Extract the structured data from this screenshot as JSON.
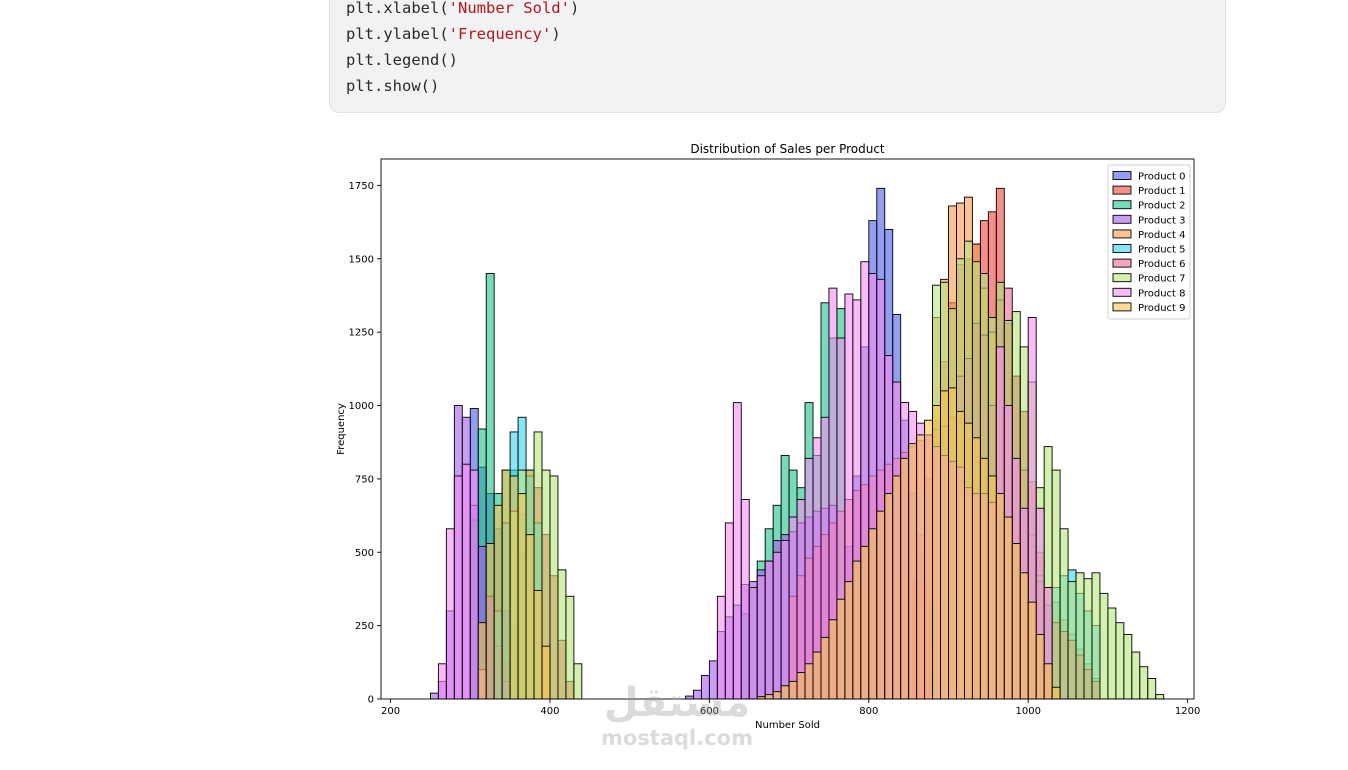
{
  "code": {
    "lines": [
      {
        "prefix": "plt.xlabel(",
        "arg": "'Number Sold'",
        "suffix": ")"
      },
      {
        "prefix": "plt.ylabel(",
        "arg": "'Frequency'",
        "suffix": ")"
      },
      {
        "prefix": "plt.legend()",
        "arg": "",
        "suffix": ""
      },
      {
        "prefix": "plt.show()",
        "arg": "",
        "suffix": ""
      }
    ]
  },
  "watermark": {
    "logo": "مستقل",
    "text": "mostaql.com"
  },
  "chart_data": {
    "type": "bar",
    "title": "Distribution of Sales per Product",
    "xlabel": "Number Sold",
    "ylabel": "Frequency",
    "xlim": [
      188,
      1208
    ],
    "ylim": [
      0,
      1840
    ],
    "xticks": [
      200,
      400,
      600,
      800,
      1000,
      1200
    ],
    "yticks": [
      0,
      250,
      500,
      750,
      1000,
      1250,
      1500,
      1750
    ],
    "legend_position": "top-right",
    "grid": false,
    "series": [
      {
        "name": "Product 0",
        "color": "#4b5ce8",
        "bin_width": 10,
        "x": [
          300,
          310,
          320,
          330,
          340,
          770,
          780,
          790,
          800,
          810,
          820,
          830,
          840,
          850,
          860,
          870,
          880,
          890,
          900
        ],
        "values": [
          990,
          790,
          700,
          580,
          300,
          520,
          760,
          1200,
          1630,
          1740,
          1600,
          1310,
          950,
          700,
          500,
          320,
          180,
          80,
          30
        ]
      },
      {
        "name": "Product 1",
        "color": "#f0443a",
        "bin_width": 10,
        "x": [
          340,
          350,
          360,
          370,
          380,
          390,
          400,
          410,
          420,
          850,
          860,
          870,
          880,
          890,
          900,
          910,
          920,
          930,
          940,
          950,
          960,
          970,
          980,
          990,
          1000,
          1010,
          1020
        ],
        "values": [
          120,
          250,
          500,
          780,
          720,
          560,
          420,
          200,
          60,
          400,
          560,
          750,
          950,
          1150,
          1350,
          1480,
          1500,
          1550,
          1630,
          1660,
          1740,
          1280,
          1100,
          980,
          740,
          500,
          200
        ]
      },
      {
        "name": "Product 2",
        "color": "#1cc28a",
        "bin_width": 10,
        "x": [
          300,
          310,
          320,
          330,
          340,
          350,
          360,
          640,
          650,
          660,
          670,
          680,
          690,
          700,
          710,
          720,
          730,
          740,
          750,
          760
        ],
        "values": [
          610,
          920,
          1450,
          700,
          780,
          780,
          630,
          290,
          380,
          470,
          580,
          660,
          830,
          780,
          720,
          1010,
          830,
          1350,
          1230,
          1330
        ]
      },
      {
        "name": "Product 3",
        "color": "#a35cf0",
        "bin_width": 10,
        "x": [
          250,
          260,
          270,
          280,
          290,
          300,
          310,
          320,
          330,
          340,
          570,
          580,
          590,
          600,
          610,
          620,
          630,
          640,
          650,
          660,
          670,
          680,
          690,
          700,
          710,
          720,
          730,
          740,
          750
        ],
        "values": [
          20,
          60,
          300,
          1000,
          960,
          660,
          520,
          350,
          180,
          60,
          10,
          30,
          80,
          130,
          230,
          280,
          320,
          390,
          400,
          440,
          470,
          540,
          560,
          570,
          600,
          620,
          640,
          650,
          660
        ]
      },
      {
        "name": "Product 4",
        "color": "#f89a4c",
        "bin_width": 10,
        "x": [
          880,
          890,
          900,
          910,
          920,
          930,
          940,
          950,
          960,
          970,
          980,
          990,
          1000,
          1010,
          1020,
          1030,
          1040,
          1050,
          1060,
          1070,
          1080
        ],
        "values": [
          1300,
          1430,
          1680,
          1690,
          1710,
          1550,
          1400,
          1250,
          1150,
          980,
          820,
          640,
          520,
          420,
          380,
          330,
          270,
          220,
          170,
          120,
          70
        ]
      },
      {
        "name": "Product 5",
        "color": "#36d6f0",
        "bin_width": 10,
        "x": [
          330,
          340,
          350,
          360,
          370,
          380,
          1020,
          1030,
          1040,
          1050,
          1060,
          1070,
          1080
        ],
        "values": [
          300,
          600,
          910,
          960,
          760,
          600,
          320,
          380,
          420,
          440,
          360,
          300,
          250
        ]
      },
      {
        "name": "Product 6",
        "color": "#ee6a8c",
        "bin_width": 10,
        "x": [
          700,
          710,
          720,
          730,
          740,
          750,
          760,
          770,
          780,
          790,
          800,
          810,
          820,
          830,
          840,
          850,
          860,
          870,
          880,
          890,
          900,
          910,
          920,
          930,
          940,
          950,
          960,
          970,
          980,
          990,
          1000,
          1010,
          1020,
          1030,
          1040,
          1050,
          1060,
          1070,
          1080
        ],
        "values": [
          350,
          420,
          480,
          520,
          560,
          600,
          640,
          680,
          710,
          730,
          760,
          780,
          800,
          820,
          840,
          860,
          880,
          900,
          920,
          930,
          960,
          1100,
          1160,
          1280,
          1240,
          1000,
          1360,
          1400,
          1100,
          780,
          560,
          400,
          320,
          260,
          230,
          200,
          150,
          100,
          60
        ]
      },
      {
        "name": "Product 7",
        "color": "#b5e67a",
        "bin_width": 10,
        "x": [
          350,
          360,
          370,
          380,
          390,
          400,
          410,
          420,
          430,
          880,
          890,
          900,
          910,
          920,
          930,
          940,
          950,
          960,
          970,
          980,
          990,
          1000,
          1010,
          1020,
          1030,
          1040,
          1050,
          1060,
          1070,
          1080,
          1090,
          1100,
          1110,
          1120,
          1130,
          1140,
          1150,
          1160
        ],
        "values": [
          640,
          780,
          780,
          910,
          780,
          760,
          440,
          350,
          120,
          1410,
          1420,
          1330,
          1500,
          1560,
          1490,
          1450,
          1300,
          1420,
          1290,
          1320,
          1200,
          1080,
          720,
          860,
          780,
          580,
          400,
          430,
          410,
          430,
          360,
          310,
          260,
          220,
          160,
          110,
          70,
          15
        ]
      },
      {
        "name": "Product 8",
        "color": "#f58cf5",
        "bin_width": 10,
        "x": [
          260,
          270,
          280,
          290,
          300,
          310,
          610,
          620,
          630,
          640,
          650,
          660,
          670,
          680,
          690,
          700,
          710,
          720,
          730,
          740,
          750,
          760,
          770,
          780,
          790,
          800,
          810,
          820,
          830,
          840,
          850,
          860,
          870,
          880,
          890,
          900,
          910,
          920,
          930,
          940,
          950,
          960,
          970,
          980,
          990,
          1000,
          1010,
          1020
        ],
        "values": [
          120,
          580,
          760,
          800,
          780,
          100,
          350,
          600,
          1010,
          680,
          380,
          420,
          470,
          500,
          540,
          620,
          680,
          820,
          890,
          960,
          1400,
          1230,
          1380,
          1360,
          1490,
          1450,
          1430,
          1170,
          1080,
          1010,
          980,
          940,
          900,
          860,
          830,
          810,
          790,
          720,
          700,
          700,
          670,
          1200,
          1000,
          820,
          650,
          1300,
          650,
          380
        ]
      },
      {
        "name": "Product 9",
        "color": "#f7c451",
        "bin_width": 10,
        "x": [
          310,
          320,
          330,
          340,
          350,
          360,
          370,
          380,
          390,
          660,
          670,
          680,
          690,
          700,
          710,
          720,
          730,
          740,
          750,
          760,
          770,
          780,
          790,
          800,
          810,
          820,
          830,
          840,
          850,
          860,
          870,
          880,
          890,
          900,
          910,
          920,
          930,
          940,
          950,
          960,
          970,
          980,
          990,
          1000,
          1010,
          1020,
          1030
        ],
        "values": [
          260,
          530,
          660,
          780,
          760,
          700,
          560,
          370,
          180,
          8,
          15,
          25,
          45,
          60,
          90,
          120,
          160,
          210,
          270,
          340,
          400,
          470,
          520,
          580,
          640,
          700,
          760,
          820,
          870,
          900,
          950,
          1000,
          1050,
          1060,
          980,
          940,
          890,
          820,
          760,
          700,
          620,
          530,
          430,
          330,
          220,
          120,
          40
        ]
      }
    ]
  }
}
